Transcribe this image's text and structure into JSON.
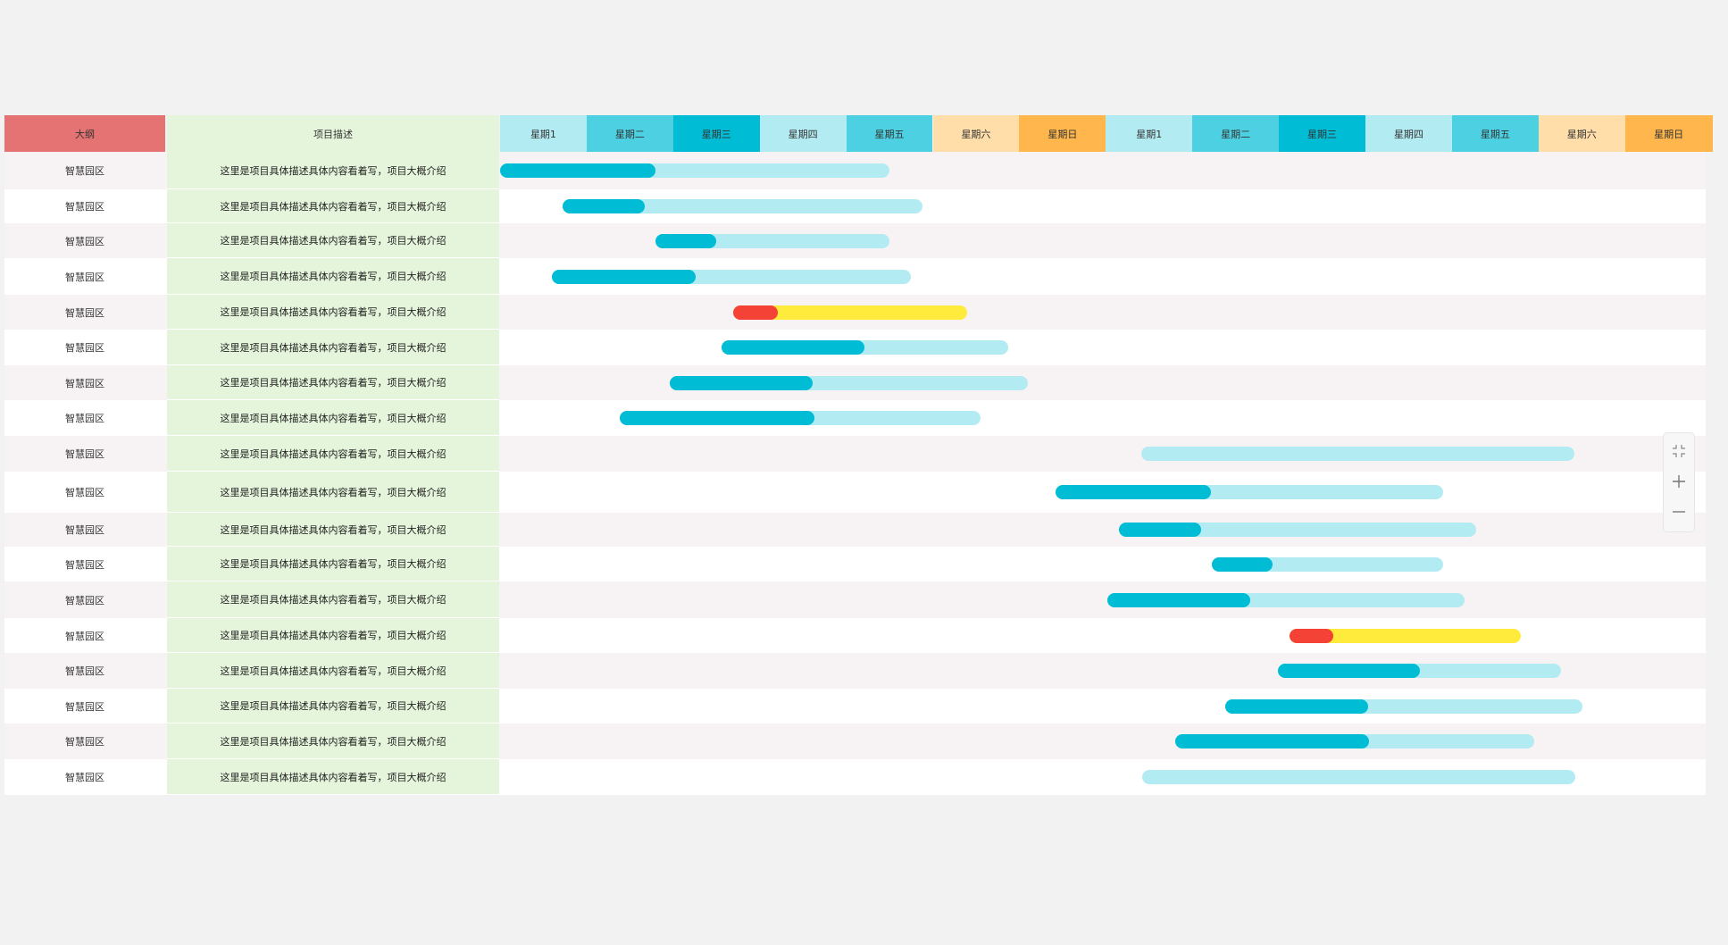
{
  "header": {
    "outline_label": "大纲",
    "desc_label": "项目描述",
    "days": [
      {
        "label": "星期1",
        "color": "#b3ebf2"
      },
      {
        "label": "星期二",
        "color": "#4dd0e1"
      },
      {
        "label": "星期三",
        "color": "#00bcd4"
      },
      {
        "label": "星期四",
        "color": "#b3ebf2"
      },
      {
        "label": "星期五",
        "color": "#4dd0e1"
      },
      {
        "label": "星期六",
        "color": "#ffdeaa"
      },
      {
        "label": "星期日",
        "color": "#ffb74d"
      },
      {
        "label": "星期1",
        "color": "#b3ebf2"
      },
      {
        "label": "星期二",
        "color": "#4dd0e1"
      },
      {
        "label": "星期三",
        "color": "#00bcd4"
      },
      {
        "label": "星期四",
        "color": "#b3ebf2"
      },
      {
        "label": "星期五",
        "color": "#4dd0e1"
      },
      {
        "label": "星期六",
        "color": "#ffdeaa"
      },
      {
        "label": "星期日",
        "color": "#ffb74d"
      }
    ]
  },
  "colors": {
    "progress_done": "#00bcd4",
    "progress_total": "#b3ebf2",
    "warning_done": "#f44336",
    "warning_total": "#ffeb3b"
  },
  "tasks": [
    {
      "outline": "智慧园区",
      "desc": "这里是项目具体描述具体内容看着写，项目大概介绍",
      "start_day": 0.0,
      "end_day": 4.5,
      "progress": 0.4,
      "status": "normal"
    },
    {
      "outline": "智慧园区",
      "desc": "这里是项目具体描述具体内容看着写，项目大概介绍",
      "start_day": 0.72,
      "end_day": 4.88,
      "progress": 0.23,
      "status": "normal"
    },
    {
      "outline": "智慧园区",
      "desc": "这里是项目具体描述具体内容看着写，项目大概介绍",
      "start_day": 1.8,
      "end_day": 4.5,
      "progress": 0.26,
      "status": "normal"
    },
    {
      "outline": "智慧园区",
      "desc": "这里是项目具体描述具体内容看着写，项目大概介绍",
      "start_day": 0.6,
      "end_day": 4.75,
      "progress": 0.4,
      "status": "normal"
    },
    {
      "outline": "智慧园区",
      "desc": "这里是项目具体描述具体内容看着写，项目大概介绍",
      "start_day": 2.69,
      "end_day": 5.4,
      "progress": 0.19,
      "status": "warning"
    },
    {
      "outline": "智慧园区",
      "desc": "这里是项目具体描述具体内容看着写，项目大概介绍",
      "start_day": 2.56,
      "end_day": 5.87,
      "progress": 0.5,
      "status": "normal"
    },
    {
      "outline": "智慧园区",
      "desc": "这里是项目具体描述具体内容看着写，项目大概介绍",
      "start_day": 1.96,
      "end_day": 6.1,
      "progress": 0.4,
      "status": "normal"
    },
    {
      "outline": "智慧园区",
      "desc": "这里是项目具体描述具体内容看着写，项目大概介绍",
      "start_day": 1.38,
      "end_day": 5.55,
      "progress": 0.54,
      "status": "normal"
    },
    {
      "outline": "智慧园区",
      "desc": "这里是项目具体描述具体内容看着写，项目大概介绍",
      "start_day": 7.41,
      "end_day": 12.42,
      "progress": 0.0,
      "status": "normal"
    },
    {
      "outline": "智慧园区",
      "desc": "这里是项目具体描述具体内容看着写，项目大概介绍",
      "start_day": 6.42,
      "end_day": 10.9,
      "progress": 0.4,
      "status": "normal"
    },
    {
      "outline": "智慧园区",
      "desc": "这里是项目具体描述具体内容看着写，项目大概介绍",
      "start_day": 7.15,
      "end_day": 11.28,
      "progress": 0.23,
      "status": "normal"
    },
    {
      "outline": "智慧园区",
      "desc": "这里是项目具体描述具体内容看着写，项目大概介绍",
      "start_day": 8.23,
      "end_day": 10.9,
      "progress": 0.26,
      "status": "normal"
    },
    {
      "outline": "智慧园区",
      "desc": "这里是项目具体描述具体内容看着写，项目大概介绍",
      "start_day": 7.02,
      "end_day": 11.15,
      "progress": 0.4,
      "status": "normal"
    },
    {
      "outline": "智慧园区",
      "desc": "这里是项目具体描述具体内容看着写，项目大概介绍",
      "start_day": 9.12,
      "end_day": 11.8,
      "progress": 0.19,
      "status": "warning"
    },
    {
      "outline": "智慧园区",
      "desc": "这里是项目具体描述具体内容看着写，项目大概介绍",
      "start_day": 8.99,
      "end_day": 12.26,
      "progress": 0.5,
      "status": "normal"
    },
    {
      "outline": "智慧园区",
      "desc": "这里是项目具体描述具体内容看着写，项目大概介绍",
      "start_day": 8.38,
      "end_day": 12.51,
      "progress": 0.4,
      "status": "normal"
    },
    {
      "outline": "智慧园区",
      "desc": "这里是项目具体描述具体内容看着写，项目大概介绍",
      "start_day": 7.8,
      "end_day": 11.95,
      "progress": 0.54,
      "status": "normal"
    },
    {
      "outline": "智慧园区",
      "desc": "这里是项目具体描述具体内容看着写，项目大概介绍",
      "start_day": 7.42,
      "end_day": 12.43,
      "progress": 0.0,
      "status": "normal"
    }
  ],
  "zoom_controls": {
    "fit": "fit-screen-icon",
    "zoom_in": "plus-icon",
    "zoom_out": "minus-icon"
  }
}
